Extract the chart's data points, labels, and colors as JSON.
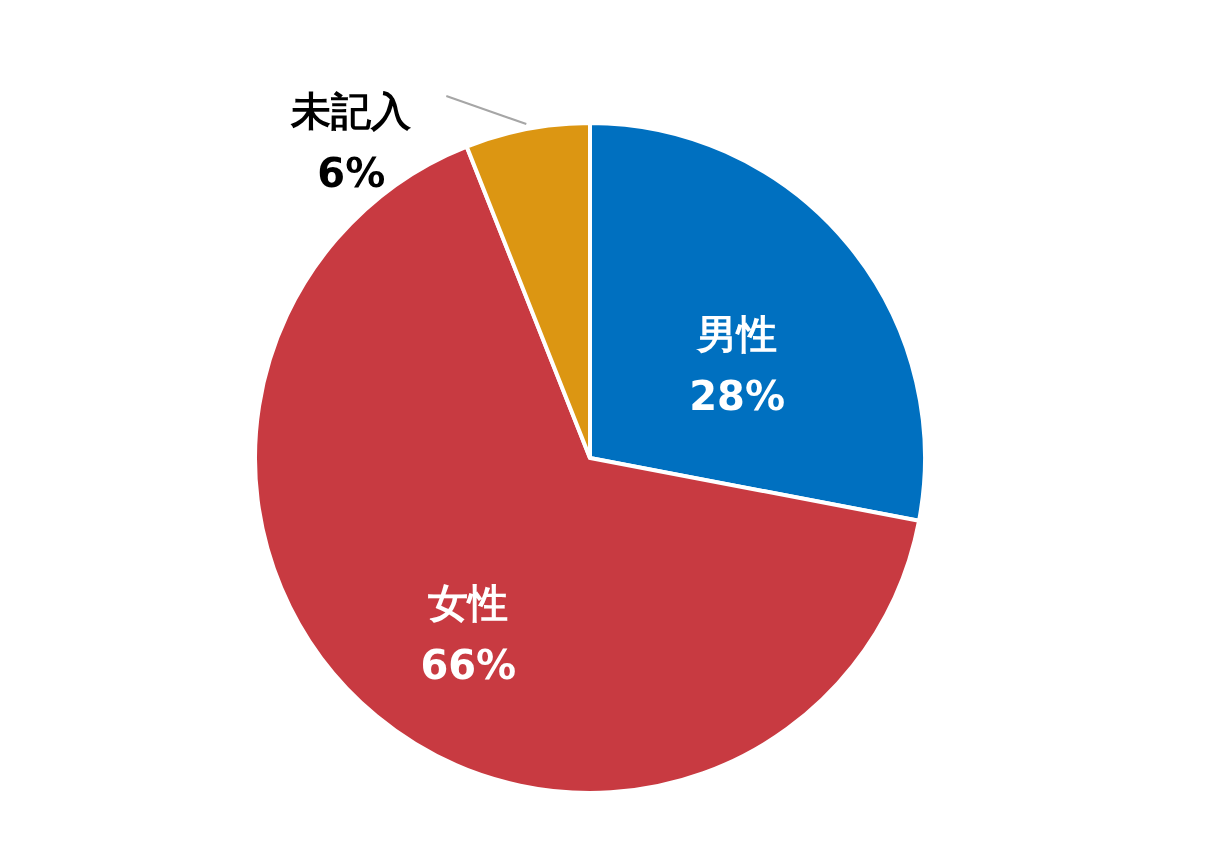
{
  "chart_data": {
    "type": "pie",
    "categories": [
      "男性",
      "女性",
      "未記入"
    ],
    "values": [
      28,
      66,
      6
    ],
    "colors": [
      "#0070c0",
      "#c83a41",
      "#dc9612"
    ],
    "value_labels": [
      "28%",
      "66%",
      "6%"
    ]
  }
}
